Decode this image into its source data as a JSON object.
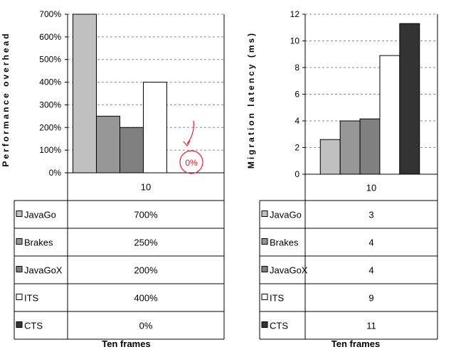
{
  "chart_data": [
    {
      "type": "bar",
      "title": "",
      "ylabel": "Performance overhead",
      "xlabel": "Ten frames",
      "categories": [
        "10"
      ],
      "ylim": [
        0,
        700
      ],
      "yticks": [
        "0%",
        "100%",
        "200%",
        "300%",
        "400%",
        "500%",
        "600%",
        "700%"
      ],
      "grid": true,
      "series": [
        {
          "name": "JavaGo",
          "values": [
            700
          ],
          "display": "700%",
          "color": "#c0c0c0"
        },
        {
          "name": "Brakes",
          "values": [
            250
          ],
          "display": "250%",
          "color": "#969696"
        },
        {
          "name": "JavaGoX",
          "values": [
            200
          ],
          "display": "200%",
          "color": "#808080"
        },
        {
          "name": "ITS",
          "values": [
            400
          ],
          "display": "400%",
          "color": "#ffffff"
        },
        {
          "name": "CTS",
          "values": [
            0
          ],
          "display": "0%",
          "color": "#333333"
        }
      ],
      "annotation": {
        "text": "0%",
        "color": "#e8202a"
      }
    },
    {
      "type": "bar",
      "title": "",
      "ylabel": "Migration latency (ms)",
      "xlabel": "Ten frames",
      "categories": [
        "10"
      ],
      "ylim": [
        0,
        12
      ],
      "yticks": [
        "0",
        "2",
        "4",
        "6",
        "8",
        "10",
        "12"
      ],
      "grid": true,
      "series": [
        {
          "name": "JavaGo",
          "values": [
            2.6
          ],
          "display": "3",
          "color": "#c0c0c0"
        },
        {
          "name": "Brakes",
          "values": [
            4.0
          ],
          "display": "4",
          "color": "#969696"
        },
        {
          "name": "JavaGoX",
          "values": [
            4.15
          ],
          "display": "4",
          "color": "#808080"
        },
        {
          "name": "ITS",
          "values": [
            8.9
          ],
          "display": "9",
          "color": "#ffffff"
        },
        {
          "name": "CTS",
          "values": [
            11.3
          ],
          "display": "11",
          "color": "#333333"
        }
      ]
    }
  ]
}
